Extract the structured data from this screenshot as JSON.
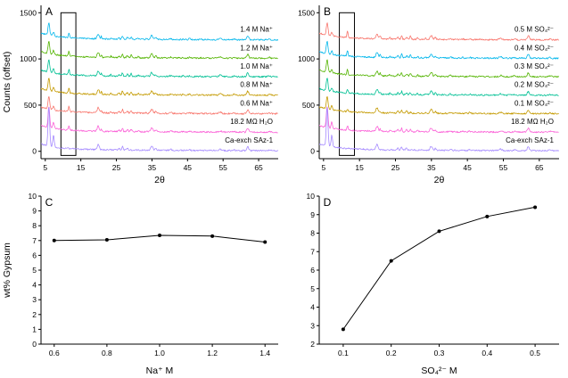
{
  "figure": {
    "bg": "#ffffff",
    "axis_color": "#000000",
    "point_color": "#000000"
  },
  "xrd_peaks": [
    {
      "t": 6.0,
      "d": true,
      "w": 0.32
    },
    {
      "t": 7.3,
      "d2": true,
      "w": 0.28
    },
    {
      "t": 11.65,
      "g": true,
      "a": 110,
      "w": 0.22
    },
    {
      "t": 19.9,
      "a": 55,
      "w": 0.4
    },
    {
      "t": 20.75,
      "g": true,
      "a": 55,
      "w": 0.22
    },
    {
      "t": 23.45,
      "g": true,
      "a": 32,
      "w": 0.22
    },
    {
      "t": 25.7,
      "a": 18,
      "w": 0.3
    },
    {
      "t": 26.7,
      "a": 38,
      "w": 0.22
    },
    {
      "t": 28.1,
      "a": 22,
      "w": 0.3
    },
    {
      "t": 29.15,
      "g": true,
      "a": 58,
      "w": 0.24
    },
    {
      "t": 31.15,
      "g": true,
      "a": 28,
      "w": 0.22
    },
    {
      "t": 33.4,
      "g": true,
      "a": 18,
      "w": 0.25
    },
    {
      "t": 34.95,
      "a": 42,
      "w": 0.45
    },
    {
      "t": 36.1,
      "a": 20,
      "w": 0.3
    },
    {
      "t": 40.3,
      "a": 10,
      "w": 0.4
    },
    {
      "t": 43.7,
      "g": true,
      "a": 12,
      "w": 0.3
    },
    {
      "t": 45.6,
      "a": 8,
      "w": 0.4
    },
    {
      "t": 48.7,
      "g": true,
      "a": 8,
      "w": 0.3
    },
    {
      "t": 54.2,
      "a": 14,
      "w": 0.5
    },
    {
      "t": 58.1,
      "a": 8,
      "w": 0.4
    },
    {
      "t": 61.95,
      "a": 42,
      "w": 0.4
    },
    {
      "t": 68.0,
      "a": 8,
      "w": 0.4
    }
  ],
  "chart_data": [
    {
      "id": "A",
      "type": "line",
      "panel_label": "A",
      "xlabel": "2θ",
      "ylabel": "Counts (offset)",
      "xlim": [
        3.8,
        70.5
      ],
      "ylim": [
        -80,
        1580
      ],
      "xticks": [
        5,
        15,
        25,
        35,
        45,
        55,
        65
      ],
      "yticks": [
        0,
        500,
        1000,
        1500
      ],
      "highlight_box": {
        "x0": 9.4,
        "x1": 13.6,
        "y0": -45,
        "y1": 1500
      },
      "noise": 8,
      "background": [
        55,
        5,
        18,
        25,
        6
      ],
      "traces": [
        {
          "label": "1.4 M Na⁺",
          "color": "#00B6EB",
          "offset": 1200,
          "gypsum": 0.5,
          "d001": 140
        },
        {
          "label": "1.2 M Na⁺",
          "color": "#53B400",
          "offset": 1000,
          "gypsum": 0.5,
          "d001": 140
        },
        {
          "label": "1.0 M Na⁺",
          "color": "#00C094",
          "offset": 800,
          "gypsum": 0.55,
          "d001": 140
        },
        {
          "label": "0.8 M Na⁺",
          "color": "#C49A00",
          "offset": 600,
          "gypsum": 0.5,
          "d001": 140
        },
        {
          "label": "0.6 M Na⁺",
          "color": "#F8766D",
          "offset": 400,
          "gypsum": 0.5,
          "d001": 140
        },
        {
          "label": "18.2 MΩ H₂O",
          "color": "#FB61D7",
          "offset": 200,
          "gypsum": 0.45,
          "d001": 230
        },
        {
          "label": "Ca-exch SAz-1",
          "color": "#A58AFF",
          "offset": 0,
          "gypsum": 0.0,
          "d001": 430
        }
      ]
    },
    {
      "id": "B",
      "type": "line",
      "panel_label": "B",
      "xlabel": "2θ",
      "ylabel": "",
      "xlim": [
        3.8,
        70.5
      ],
      "ylim": [
        -80,
        1580
      ],
      "xticks": [
        5,
        15,
        25,
        35,
        45,
        55,
        65
      ],
      "yticks": [
        0,
        500,
        1000,
        1500
      ],
      "highlight_box": {
        "x0": 9.4,
        "x1": 13.6,
        "y0": -45,
        "y1": 1500
      },
      "noise": 8,
      "background": [
        55,
        5,
        18,
        25,
        6
      ],
      "traces": [
        {
          "label": "0.5 M SO₄²⁻",
          "color": "#F8766D",
          "offset": 1200,
          "gypsum": 0.62,
          "d001": 140
        },
        {
          "label": "0.4 M SO₄²⁻",
          "color": "#00B6EB",
          "offset": 1000,
          "gypsum": 0.58,
          "d001": 140
        },
        {
          "label": "0.3 M SO₄²⁻",
          "color": "#53B400",
          "offset": 800,
          "gypsum": 0.52,
          "d001": 140
        },
        {
          "label": "0.2 M SO₄²⁻",
          "color": "#00C094",
          "offset": 600,
          "gypsum": 0.42,
          "d001": 140
        },
        {
          "label": "0.1 M SO₄²⁻",
          "color": "#C49A00",
          "offset": 400,
          "gypsum": 0.18,
          "d001": 140
        },
        {
          "label": "18.2 MΩ H₂O",
          "color": "#FB61D7",
          "offset": 200,
          "gypsum": 0.45,
          "d001": 230
        },
        {
          "label": "Ca-exch SAz-1",
          "color": "#A58AFF",
          "offset": 0,
          "gypsum": 0.0,
          "d001": 430
        }
      ]
    },
    {
      "id": "C",
      "type": "scatter",
      "panel_label": "C",
      "xlabel": "Na⁺ M",
      "ylabel": "wt% Gypsum",
      "x": [
        0.6,
        0.8,
        1.0,
        1.2,
        1.4
      ],
      "y": [
        7.0,
        7.05,
        7.35,
        7.3,
        6.9
      ],
      "xlim": [
        0.55,
        1.45
      ],
      "ylim": [
        0,
        10
      ],
      "xticks": [
        0.6,
        0.8,
        1.0,
        1.2,
        1.4
      ],
      "xtick_labels": [
        "0.6",
        "0.8",
        "1.0",
        "1.2",
        "1.4"
      ],
      "yticks": [
        0,
        1,
        2,
        3,
        4,
        5,
        6,
        7,
        8,
        9,
        10
      ]
    },
    {
      "id": "D",
      "type": "scatter",
      "panel_label": "D",
      "xlabel": "SO₄²⁻ M",
      "ylabel": "",
      "x": [
        0.1,
        0.2,
        0.3,
        0.4,
        0.5
      ],
      "y": [
        2.8,
        6.5,
        8.1,
        8.9,
        9.4
      ],
      "xlim": [
        0.05,
        0.55
      ],
      "ylim": [
        2,
        10
      ],
      "xticks": [
        0.1,
        0.2,
        0.3,
        0.4,
        0.5
      ],
      "xtick_labels": [
        "0.1",
        "0.2",
        "0.3",
        "0.4",
        "0.5"
      ],
      "yticks": [
        2,
        3,
        4,
        5,
        6,
        7,
        8,
        9,
        10
      ]
    }
  ]
}
